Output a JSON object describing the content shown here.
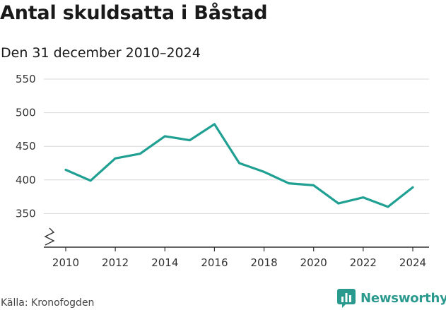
{
  "header": {
    "title": "Antal skuldsatta i Båstad",
    "subtitle": "Den 31 december 2010–2024"
  },
  "footer": {
    "source": "Källa: Kronofogden",
    "brand": "Newsworthy"
  },
  "colors": {
    "line": "#1fa092",
    "grid": "#d9d9d9",
    "axis": "#333333",
    "brand": "#2b9a8e"
  },
  "icons": {
    "brand_logo": "bar-chart-logo-icon",
    "axis_break": "zigzag-axis-break-icon"
  },
  "chart_data": {
    "type": "line",
    "title": "Antal skuldsatta i Båstad",
    "subtitle": "Den 31 december 2010–2024",
    "xlabel": "",
    "ylabel": "",
    "x": [
      2010,
      2011,
      2012,
      2013,
      2014,
      2015,
      2016,
      2017,
      2018,
      2019,
      2020,
      2021,
      2022,
      2023,
      2024
    ],
    "series": [
      {
        "values": [
          415,
          399,
          432,
          439,
          465,
          459,
          483,
          425,
          412,
          395,
          392,
          365,
          374,
          360,
          389
        ]
      }
    ],
    "xticks": [
      2010,
      2012,
      2014,
      2016,
      2018,
      2020,
      2022,
      2024
    ],
    "yticks": [
      350,
      400,
      450,
      500,
      550
    ],
    "xlim": [
      2010,
      2024
    ],
    "ylim": [
      300,
      550
    ],
    "y_axis_break": true,
    "grid": "horizontal",
    "legend": "none"
  }
}
